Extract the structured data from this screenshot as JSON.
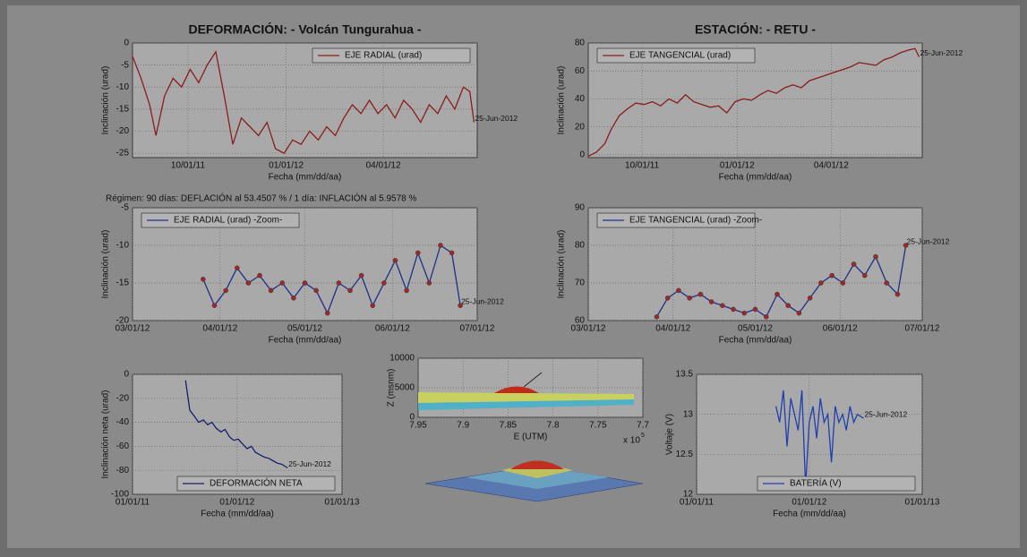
{
  "chart_data": [
    {
      "type": "line",
      "title": "DEFORMACIÓN: - Volcán Tungurahua -",
      "xlabel": "Fecha (mm/dd/aa)",
      "ylabel": "Inclinación (urad)",
      "annotation": "25-Jun-2012",
      "legend": "upper right",
      "grid": true,
      "xlim": [
        "08/10/11",
        "06/28/12"
      ],
      "xticks": [
        "10/01/11",
        "01/01/12",
        "04/01/12"
      ],
      "ylim": [
        -26,
        0
      ],
      "yticks": [
        0,
        -5,
        -10,
        -15,
        -20,
        -25
      ],
      "x": [
        "08/10/11",
        "08/18/11",
        "08/26/11",
        "09/01/11",
        "09/09/11",
        "09/17/11",
        "09/25/11",
        "10/03/11",
        "10/11/11",
        "10/19/11",
        "10/27/11",
        "11/04/11",
        "11/12/11",
        "11/20/11",
        "11/28/11",
        "12/06/11",
        "12/14/11",
        "12/22/11",
        "12/30/11",
        "01/07/12",
        "01/15/12",
        "01/23/12",
        "01/31/12",
        "02/08/12",
        "02/16/12",
        "02/24/12",
        "03/03/12",
        "03/11/12",
        "03/19/12",
        "03/27/12",
        "04/04/12",
        "04/12/12",
        "04/20/12",
        "04/28/12",
        "05/06/12",
        "05/14/12",
        "05/22/12",
        "05/30/12",
        "06/07/12",
        "06/15/12",
        "06/21/12",
        "06/25/12"
      ],
      "series": [
        {
          "name": "EJE RADIAL (urad)",
          "color": "#8a1c1c",
          "values": [
            -3,
            -8,
            -14,
            -21,
            -12,
            -8,
            -10,
            -6,
            -9,
            -5,
            -2,
            -12,
            -23,
            -17,
            -19,
            -21,
            -18,
            -24,
            -25,
            -22,
            -23,
            -20,
            -22,
            -19,
            -21,
            -17,
            -14,
            -16,
            -13,
            -16,
            -14,
            -17,
            -13,
            -15,
            -18,
            -14,
            -16,
            -12,
            -15,
            -10,
            -11,
            -18
          ]
        }
      ]
    },
    {
      "type": "line",
      "title": "ESTACIÓN: - RETU -",
      "xlabel": "Fecha (mm/dd/aa)",
      "ylabel": "Inclinación (urad)",
      "annotation": "25-Jun-2012",
      "legend": "upper left",
      "grid": true,
      "xlim": [
        "08/10/11",
        "06/28/12"
      ],
      "xticks": [
        "10/01/11",
        "01/01/12",
        "04/01/12"
      ],
      "ylim": [
        -2,
        80
      ],
      "yticks": [
        0,
        20,
        40,
        60,
        80
      ],
      "x": [
        "08/10/11",
        "08/18/11",
        "08/26/11",
        "09/01/11",
        "09/09/11",
        "09/17/11",
        "09/25/11",
        "10/03/11",
        "10/11/11",
        "10/19/11",
        "10/27/11",
        "11/04/11",
        "11/12/11",
        "11/20/11",
        "11/28/11",
        "12/06/11",
        "12/14/11",
        "12/22/11",
        "12/30/11",
        "01/07/12",
        "01/15/12",
        "01/23/12",
        "01/31/12",
        "02/08/12",
        "02/16/12",
        "02/24/12",
        "03/03/12",
        "03/11/12",
        "03/19/12",
        "03/27/12",
        "04/04/12",
        "04/12/12",
        "04/20/12",
        "04/28/12",
        "05/06/12",
        "05/14/12",
        "05/22/12",
        "05/30/12",
        "06/07/12",
        "06/15/12",
        "06/21/12",
        "06/25/12"
      ],
      "series": [
        {
          "name": "EJE TANGENCIAL (urad)",
          "color": "#8a1c1c",
          "values": [
            -1,
            2,
            8,
            18,
            28,
            33,
            37,
            36,
            38,
            35,
            40,
            37,
            43,
            38,
            36,
            34,
            35,
            30,
            38,
            40,
            39,
            43,
            46,
            44,
            48,
            50,
            48,
            53,
            55,
            57,
            59,
            61,
            63,
            66,
            65,
            64,
            68,
            70,
            73,
            75,
            76,
            70
          ]
        }
      ]
    },
    {
      "type": "line",
      "subtitle": "Régimen: 90 días: DEFLACIÓN al 53.4507 % / 1 día: INFLACIÓN al 5.9578 %",
      "xlabel": "Fecha (mm/dd/aa)",
      "ylabel": "Inclinación (urad)",
      "annotation": "25-Jun-2012",
      "legend": "upper left",
      "grid": true,
      "marker": "o",
      "marker_color": "#9a2a2a",
      "xlim": [
        "03/01/12",
        "07/01/12"
      ],
      "xticks": [
        "03/01/12",
        "04/01/12",
        "05/01/12",
        "06/01/12",
        "07/01/12"
      ],
      "ylim": [
        -20,
        -5
      ],
      "yticks": [
        -5,
        -10,
        -15,
        -20
      ],
      "x": [
        "03/26/12",
        "03/30/12",
        "04/03/12",
        "04/07/12",
        "04/11/12",
        "04/15/12",
        "04/19/12",
        "04/23/12",
        "04/27/12",
        "05/01/12",
        "05/05/12",
        "05/09/12",
        "05/13/12",
        "05/17/12",
        "05/21/12",
        "05/25/12",
        "05/29/12",
        "06/02/12",
        "06/06/12",
        "06/10/12",
        "06/14/12",
        "06/18/12",
        "06/22/12",
        "06/25/12"
      ],
      "series": [
        {
          "name": "EJE RADIAL (urad) -Zoom-",
          "color": "#1f2f8a",
          "values": [
            -14.5,
            -18,
            -16,
            -13,
            -15,
            -14,
            -16,
            -15,
            -17,
            -15,
            -16,
            -19,
            -15,
            -16,
            -14,
            -18,
            -15,
            -12,
            -16,
            -11,
            -15,
            -10,
            -11,
            -18
          ]
        }
      ]
    },
    {
      "type": "line",
      "xlabel": "Fecha (mm/dd/aa)",
      "ylabel": "Inclinación (urad)",
      "annotation": "25-Jun-2012",
      "legend": "upper left",
      "grid": true,
      "marker": "o",
      "marker_color": "#9a2a2a",
      "xlim": [
        "03/01/12",
        "07/01/12"
      ],
      "xticks": [
        "03/01/12",
        "04/01/12",
        "05/01/12",
        "06/01/12",
        "07/01/12"
      ],
      "ylim": [
        60,
        90
      ],
      "yticks": [
        60,
        70,
        80,
        90
      ],
      "x": [
        "03/26/12",
        "03/30/12",
        "04/03/12",
        "04/07/12",
        "04/11/12",
        "04/15/12",
        "04/19/12",
        "04/23/12",
        "04/27/12",
        "05/01/12",
        "05/05/12",
        "05/09/12",
        "05/13/12",
        "05/17/12",
        "05/21/12",
        "05/25/12",
        "05/29/12",
        "06/02/12",
        "06/06/12",
        "06/10/12",
        "06/14/12",
        "06/18/12",
        "06/22/12",
        "06/25/12"
      ],
      "series": [
        {
          "name": "EJE TANGENCIAL (urad) -Zoom-",
          "color": "#1f2f8a",
          "values": [
            61,
            66,
            68,
            66,
            67,
            65,
            64,
            63,
            62,
            63,
            61,
            67,
            64,
            62,
            66,
            70,
            72,
            70,
            75,
            72,
            77,
            70,
            67,
            80
          ]
        }
      ]
    },
    {
      "type": "line",
      "xlabel": "Fecha (mm/dd/aa)",
      "ylabel": "Inclinación neta (urad)",
      "annotation": "25-Jun-2012",
      "legend": "lower right",
      "grid": true,
      "xlim": [
        "01/01/11",
        "01/01/13"
      ],
      "xticks": [
        "01/01/11",
        "01/01/12",
        "01/01/13"
      ],
      "ylim": [
        -100,
        0
      ],
      "yticks": [
        0,
        -20,
        -40,
        -60,
        -80,
        -100
      ],
      "x": [
        "07/05/11",
        "07/20/11",
        "08/05/11",
        "08/20/11",
        "09/05/11",
        "09/20/11",
        "10/05/11",
        "10/20/11",
        "11/05/11",
        "11/20/11",
        "12/05/11",
        "12/20/11",
        "01/05/12",
        "01/20/12",
        "02/05/12",
        "02/20/12",
        "03/05/12",
        "03/20/12",
        "04/05/12",
        "04/20/12",
        "05/05/12",
        "05/20/12",
        "06/05/12",
        "06/25/12"
      ],
      "series": [
        {
          "name": "DEFORMACIÓN NETA",
          "color": "#14206e",
          "values": [
            -5,
            -30,
            -35,
            -40,
            -38,
            -42,
            -40,
            -45,
            -48,
            -46,
            -52,
            -55,
            -54,
            -58,
            -62,
            -60,
            -65,
            -67,
            -69,
            -70,
            -72,
            -74,
            -75,
            -78
          ]
        }
      ]
    },
    {
      "type": "surface",
      "xlabel": "E (UTM)",
      "ylabel": "Z (msnm)",
      "x_multiplier": "x 10",
      "x_exponent": "5",
      "grid": true,
      "xlim": [
        7.95,
        7.7
      ],
      "xticks": [
        7.95,
        7.9,
        7.85,
        7.8,
        7.75,
        7.7
      ],
      "ylim": [
        0,
        10000
      ],
      "yticks": [
        0,
        5000,
        10000
      ]
    },
    {
      "type": "line",
      "xlabel": "Fecha (mm/dd/aa)",
      "ylabel": "Voltaje (V)",
      "annotation": "25-Jun-2012",
      "legend": "lower right",
      "grid": true,
      "xlim": [
        "01/01/11",
        "01/01/13"
      ],
      "xticks": [
        "01/01/11",
        "01/01/12",
        "01/01/13"
      ],
      "ylim": [
        12,
        13.5
      ],
      "yticks": [
        12,
        12.5,
        13,
        13.5
      ],
      "x": [
        "09/15/11",
        "09/27/11",
        "10/09/11",
        "10/21/11",
        "11/02/11",
        "11/14/11",
        "11/26/11",
        "12/08/11",
        "12/20/11",
        "01/01/12",
        "01/13/12",
        "01/25/12",
        "02/06/12",
        "02/18/12",
        "03/01/12",
        "03/13/12",
        "03/25/12",
        "04/06/12",
        "04/18/12",
        "04/30/12",
        "05/12/12",
        "05/24/12",
        "06/05/12",
        "06/25/12"
      ],
      "series": [
        {
          "name": "BATERÍA (V)",
          "color": "#1f3fb0",
          "values": [
            13.1,
            12.9,
            13.3,
            12.6,
            13.2,
            13.0,
            12.8,
            13.3,
            12.1,
            12.9,
            13.1,
            12.7,
            13.2,
            12.9,
            13.0,
            12.4,
            13.1,
            12.9,
            13.0,
            12.8,
            13.1,
            12.9,
            13.0,
            12.95
          ]
        }
      ]
    }
  ]
}
